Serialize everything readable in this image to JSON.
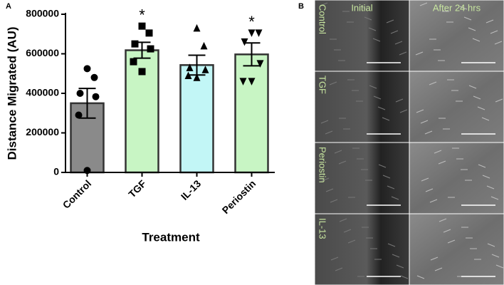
{
  "chart_data": {
    "type": "bar",
    "panel_label": "A",
    "x_label": "Treatment",
    "y_label": "Distance Migrated (AU)",
    "categories": [
      "Control",
      "TGF",
      "IL-13",
      "Periostin"
    ],
    "values": [
      350000,
      618000,
      543000,
      597000
    ],
    "errors": [
      75000,
      40000,
      50000,
      58000
    ],
    "colors": [
      "#8a8a8a",
      "#c8f5c4",
      "#c2f6f6",
      "#c8f5c4"
    ],
    "markers": [
      "circle",
      "square",
      "triangle",
      "triangle-down"
    ],
    "points": [
      [
        525000,
        480000,
        400000,
        383000,
        290000,
        10000
      ],
      [
        740000,
        705000,
        650000,
        625000,
        560000,
        510000
      ],
      [
        730000,
        640000,
        530000,
        520000,
        490000,
        480000
      ],
      [
        705000,
        705000,
        660000,
        550000,
        460000,
        460000
      ]
    ],
    "annotations": [
      {
        "category_index": 1,
        "text": "*"
      },
      {
        "category_index": 3,
        "text": "*"
      }
    ],
    "ylim": [
      0,
      800000
    ],
    "yticks": [
      0,
      200000,
      400000,
      600000,
      800000
    ]
  },
  "panel_b": {
    "label": "B",
    "columns": [
      "Initial",
      "After 24 hrs"
    ],
    "rows": [
      "Control",
      "TGF",
      "Periostin",
      "IL-13"
    ]
  }
}
